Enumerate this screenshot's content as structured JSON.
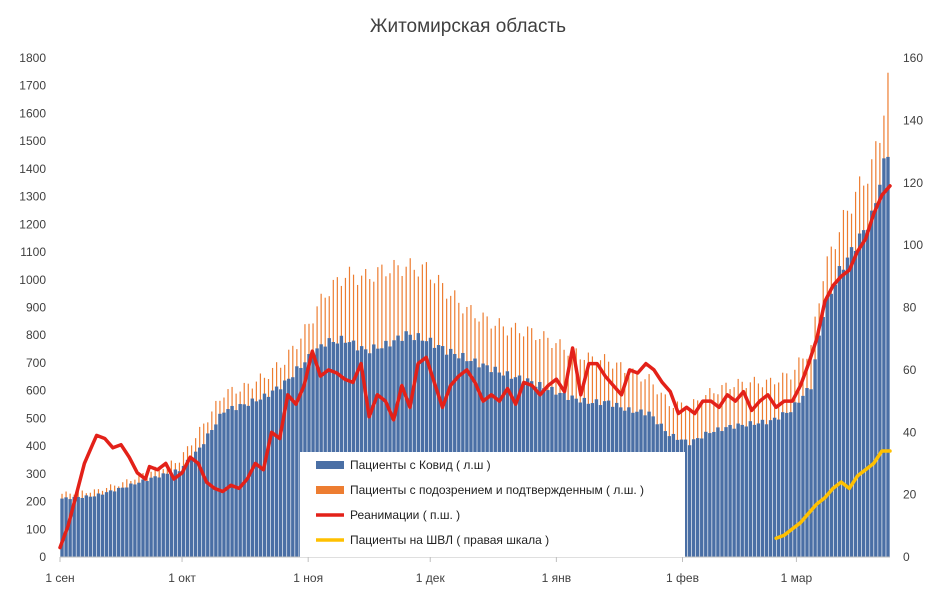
{
  "chart_data": {
    "type": "bar",
    "title": "Житомирская область",
    "xlabel": "",
    "ylabel": "",
    "ylim_left": [
      0,
      1800
    ],
    "ylim_right": [
      0,
      160
    ],
    "left_ticks": [
      "0",
      "100",
      "200",
      "300",
      "400",
      "500",
      "600",
      "700",
      "800",
      "900",
      "1000",
      "1100",
      "1200",
      "1300",
      "1400",
      "1500",
      "1600",
      "1700",
      "1800"
    ],
    "right_ticks": [
      "0",
      "20",
      "40",
      "60",
      "80",
      "100",
      "120",
      "140",
      "160"
    ],
    "x_ticks": [
      {
        "label": "1 сен",
        "day": 0
      },
      {
        "label": "1 окт",
        "day": 30
      },
      {
        "label": "1 ноя",
        "day": 61
      },
      {
        "label": "1 дек",
        "day": 91
      },
      {
        "label": "1 янв",
        "day": 122
      },
      {
        "label": "1 фев",
        "day": 153
      },
      {
        "label": "1 мар",
        "day": 181
      }
    ],
    "x_range_days": [
      0,
      204
    ],
    "series": [
      {
        "name": "Пациенты с Ковид ( л.ш )",
        "axis": "left",
        "kind": "bar",
        "color": "#4a6fa5",
        "points": [
          [
            0,
            215
          ],
          [
            8,
            225
          ],
          [
            15,
            255
          ],
          [
            22,
            290
          ],
          [
            29,
            320
          ],
          [
            34,
            400
          ],
          [
            40,
            540
          ],
          [
            45,
            560
          ],
          [
            50,
            590
          ],
          [
            55,
            640
          ],
          [
            60,
            720
          ],
          [
            65,
            790
          ],
          [
            70,
            800
          ],
          [
            75,
            760
          ],
          [
            80,
            780
          ],
          [
            85,
            820
          ],
          [
            90,
            800
          ],
          [
            95,
            760
          ],
          [
            100,
            730
          ],
          [
            105,
            700
          ],
          [
            110,
            670
          ],
          [
            115,
            650
          ],
          [
            120,
            620
          ],
          [
            125,
            590
          ],
          [
            130,
            570
          ],
          [
            135,
            570
          ],
          [
            140,
            540
          ],
          [
            145,
            530
          ],
          [
            150,
            450
          ],
          [
            155,
            420
          ],
          [
            160,
            460
          ],
          [
            165,
            480
          ],
          [
            170,
            490
          ],
          [
            175,
            500
          ],
          [
            180,
            540
          ],
          [
            185,
            630
          ],
          [
            188,
            900
          ],
          [
            192,
            1050
          ],
          [
            196,
            1150
          ],
          [
            200,
            1250
          ],
          [
            202,
            1380
          ],
          [
            204,
            1500
          ]
        ]
      },
      {
        "name": "Пациенты с подозрением и подтвержденным ( л.ш. )",
        "axis": "left",
        "kind": "bar",
        "color": "#ed7d31",
        "points": [
          [
            0,
            235
          ],
          [
            8,
            245
          ],
          [
            15,
            275
          ],
          [
            22,
            320
          ],
          [
            29,
            360
          ],
          [
            34,
            470
          ],
          [
            40,
            610
          ],
          [
            45,
            630
          ],
          [
            50,
            670
          ],
          [
            55,
            730
          ],
          [
            60,
            840
          ],
          [
            65,
            980
          ],
          [
            70,
            1050
          ],
          [
            75,
            1040
          ],
          [
            80,
            1070
          ],
          [
            85,
            1080
          ],
          [
            90,
            1070
          ],
          [
            95,
            990
          ],
          [
            100,
            920
          ],
          [
            105,
            880
          ],
          [
            110,
            850
          ],
          [
            115,
            840
          ],
          [
            120,
            810
          ],
          [
            125,
            770
          ],
          [
            130,
            740
          ],
          [
            135,
            730
          ],
          [
            140,
            690
          ],
          [
            145,
            660
          ],
          [
            150,
            570
          ],
          [
            155,
            560
          ],
          [
            160,
            610
          ],
          [
            165,
            640
          ],
          [
            170,
            650
          ],
          [
            175,
            650
          ],
          [
            180,
            680
          ],
          [
            185,
            780
          ],
          [
            188,
            1050
          ],
          [
            192,
            1220
          ],
          [
            196,
            1350
          ],
          [
            200,
            1450
          ],
          [
            202,
            1580
          ],
          [
            204,
            1750
          ]
        ]
      },
      {
        "name": "Реанимации ( п.ш. )",
        "axis": "right",
        "kind": "line",
        "color": "#e32119",
        "points": [
          [
            0,
            3
          ],
          [
            2,
            10
          ],
          [
            4,
            20
          ],
          [
            6,
            30
          ],
          [
            8,
            36
          ],
          [
            9,
            39
          ],
          [
            11,
            38
          ],
          [
            13,
            35
          ],
          [
            15,
            36
          ],
          [
            17,
            32
          ],
          [
            19,
            27
          ],
          [
            21,
            25
          ],
          [
            22,
            29
          ],
          [
            24,
            28
          ],
          [
            26,
            30
          ],
          [
            28,
            25
          ],
          [
            30,
            27
          ],
          [
            32,
            32
          ],
          [
            34,
            30
          ],
          [
            36,
            24
          ],
          [
            38,
            22
          ],
          [
            40,
            21
          ],
          [
            42,
            23
          ],
          [
            44,
            22
          ],
          [
            46,
            25
          ],
          [
            48,
            30
          ],
          [
            50,
            28
          ],
          [
            52,
            40
          ],
          [
            54,
            38
          ],
          [
            56,
            52
          ],
          [
            58,
            49
          ],
          [
            60,
            55
          ],
          [
            62,
            66
          ],
          [
            64,
            58
          ],
          [
            66,
            60
          ],
          [
            68,
            59
          ],
          [
            70,
            57
          ],
          [
            72,
            56
          ],
          [
            74,
            62
          ],
          [
            76,
            45
          ],
          [
            78,
            52
          ],
          [
            80,
            50
          ],
          [
            82,
            44
          ],
          [
            84,
            55
          ],
          [
            86,
            48
          ],
          [
            88,
            62
          ],
          [
            90,
            64
          ],
          [
            92,
            56
          ],
          [
            94,
            48
          ],
          [
            96,
            55
          ],
          [
            98,
            58
          ],
          [
            100,
            60
          ],
          [
            102,
            56
          ],
          [
            104,
            50
          ],
          [
            106,
            52
          ],
          [
            108,
            50
          ],
          [
            110,
            54
          ],
          [
            112,
            49
          ],
          [
            114,
            56
          ],
          [
            116,
            55
          ],
          [
            118,
            52
          ],
          [
            120,
            55
          ],
          [
            122,
            57
          ],
          [
            124,
            53
          ],
          [
            126,
            67
          ],
          [
            128,
            52
          ],
          [
            130,
            62
          ],
          [
            132,
            62
          ],
          [
            134,
            58
          ],
          [
            136,
            55
          ],
          [
            138,
            52
          ],
          [
            140,
            60
          ],
          [
            142,
            59
          ],
          [
            144,
            62
          ],
          [
            146,
            60
          ],
          [
            148,
            56
          ],
          [
            150,
            53
          ],
          [
            152,
            46
          ],
          [
            154,
            48
          ],
          [
            156,
            46
          ],
          [
            158,
            50
          ],
          [
            160,
            50
          ],
          [
            162,
            48
          ],
          [
            164,
            52
          ],
          [
            166,
            50
          ],
          [
            168,
            53
          ],
          [
            170,
            47
          ],
          [
            172,
            50
          ],
          [
            174,
            52
          ],
          [
            176,
            48
          ],
          [
            178,
            50
          ],
          [
            180,
            50
          ],
          [
            182,
            55
          ],
          [
            184,
            62
          ],
          [
            186,
            70
          ],
          [
            188,
            82
          ],
          [
            190,
            87
          ],
          [
            192,
            90
          ],
          [
            194,
            92
          ],
          [
            196,
            98
          ],
          [
            198,
            102
          ],
          [
            200,
            110
          ],
          [
            202,
            116
          ],
          [
            204,
            119
          ]
        ]
      },
      {
        "name": "Пациенты на ШВЛ ( правая шкала )",
        "axis": "right",
        "kind": "line",
        "color": "#ffc000",
        "points": [
          [
            176,
            6
          ],
          [
            178,
            7
          ],
          [
            180,
            9
          ],
          [
            182,
            11
          ],
          [
            184,
            14
          ],
          [
            186,
            17
          ],
          [
            188,
            19
          ],
          [
            190,
            22
          ],
          [
            192,
            24
          ],
          [
            194,
            22
          ],
          [
            196,
            26
          ],
          [
            198,
            28
          ],
          [
            200,
            30
          ],
          [
            202,
            34
          ],
          [
            204,
            34
          ]
        ]
      }
    ],
    "legend_placement": "bottom-center",
    "grid": false
  }
}
